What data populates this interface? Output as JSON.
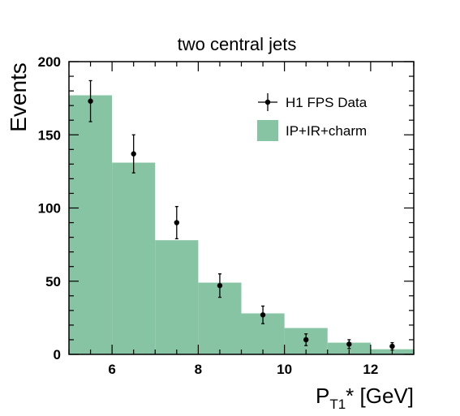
{
  "chart_data": {
    "type": "bar",
    "title": "two central jets",
    "ylabel": "Events",
    "xlabel": {
      "main": "P",
      "sub": "T1",
      "rest": "* [GeV]"
    },
    "xlim": [
      5,
      13
    ],
    "ylim": [
      0,
      200
    ],
    "x_ticks": [
      6,
      8,
      10,
      12
    ],
    "y_ticks": [
      0,
      50,
      100,
      150,
      200
    ],
    "grid": false,
    "legend_position": "top-right",
    "series": [
      {
        "name": "IP+IR+charm",
        "kind": "histogram",
        "color": "#86c4a4",
        "bin_edges": [
          5,
          6,
          7,
          8,
          9,
          10,
          11,
          12,
          13
        ],
        "values": [
          177,
          131,
          78,
          49,
          28,
          18,
          8,
          3.5
        ]
      },
      {
        "name": "H1 FPS Data",
        "kind": "points",
        "color": "#000000",
        "x": [
          5.5,
          6.5,
          7.5,
          8.5,
          9.5,
          10.5,
          11.5,
          12.5
        ],
        "y": [
          173,
          137,
          90,
          47,
          27,
          10,
          7,
          5.5
        ],
        "err": [
          14,
          13,
          11,
          8,
          6,
          4,
          3,
          2.5
        ]
      }
    ]
  }
}
